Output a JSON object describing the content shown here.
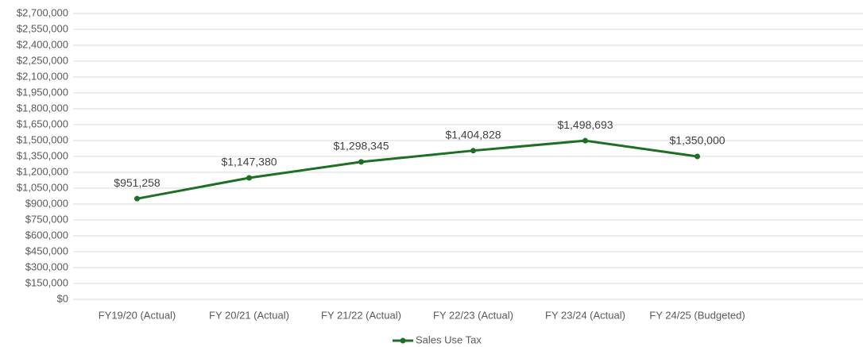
{
  "chart_data": {
    "type": "line",
    "categories": [
      "FY19/20 (Actual)",
      "FY 20/21 (Actual)",
      "FY 21/22 (Actual)",
      "FY 22/23 (Actual)",
      "FY 23/24 (Actual)",
      "FY 24/25 (Budgeted)"
    ],
    "series": [
      {
        "name": "Sales Use Tax",
        "color": "#1e6f24",
        "values": [
          951258,
          1147380,
          1298345,
          1404828,
          1498693,
          1350000
        ],
        "value_labels": [
          "$951,258",
          "$1,147,380",
          "$1,298,345",
          "$1,404,828",
          "$1,498,693",
          "$1,350,000"
        ]
      }
    ],
    "ylim": [
      0,
      2700000
    ],
    "yticks": [
      {
        "value": 0,
        "label": "$0"
      },
      {
        "value": 150000,
        "label": "$150,000"
      },
      {
        "value": 300000,
        "label": "$300,000"
      },
      {
        "value": 450000,
        "label": "$450,000"
      },
      {
        "value": 600000,
        "label": "$600,000"
      },
      {
        "value": 750000,
        "label": "$750,000"
      },
      {
        "value": 900000,
        "label": "$900,000"
      },
      {
        "value": 1050000,
        "label": "$1,050,000"
      },
      {
        "value": 1200000,
        "label": "$1,200,000"
      },
      {
        "value": 1350000,
        "label": "$1,350,000"
      },
      {
        "value": 1500000,
        "label": "$1,500,000"
      },
      {
        "value": 1650000,
        "label": "$1,650,000"
      },
      {
        "value": 1800000,
        "label": "$1,800,000"
      },
      {
        "value": 1950000,
        "label": "$1,950,000"
      },
      {
        "value": 2100000,
        "label": "$2,100,000"
      },
      {
        "value": 2250000,
        "label": "$2,250,000"
      },
      {
        "value": 2400000,
        "label": "$2,400,000"
      },
      {
        "value": 2550000,
        "label": "$2,550,000"
      },
      {
        "value": 2700000,
        "label": "$2,700,000"
      }
    ],
    "grid": true,
    "legend": "bottom"
  }
}
